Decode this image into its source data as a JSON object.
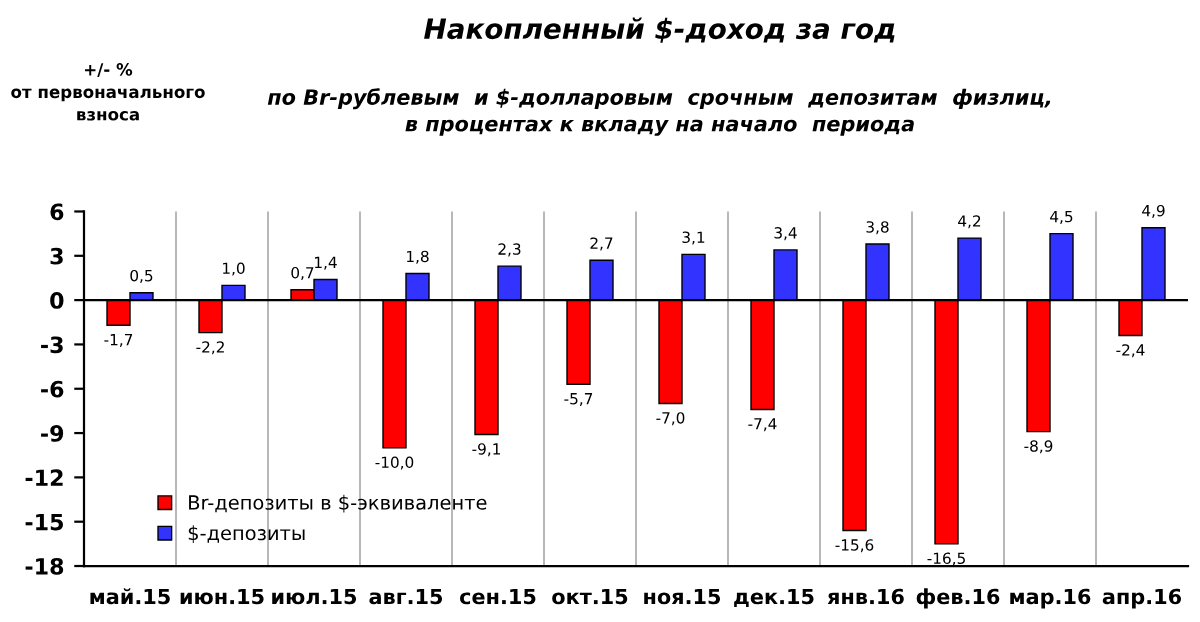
{
  "chart_data": {
    "type": "bar",
    "title": "Накопленный $-доход за год",
    "subtitle": "по Br-рублевым  и $-долларовым  срочным  депозитам  физлиц,\nв процентах к вкладу на начало  периода",
    "annotations": [
      "+/- %\nот первоначального\nвзноса"
    ],
    "categories": [
      "май.15",
      "июн.15",
      "июл.15",
      "авг.15",
      "сен.15",
      "окт.15",
      "ноя.15",
      "дек.15",
      "янв.16",
      "фев.16",
      "мар.16",
      "апр.16"
    ],
    "series": [
      {
        "name": "Br-депозиты в $-эквиваленте",
        "color": "#ff0000",
        "values": [
          -1.7,
          -2.2,
          0.7,
          -10.0,
          -9.1,
          -5.7,
          -7.0,
          -7.4,
          -15.6,
          -16.5,
          -8.9,
          -2.4
        ],
        "value_labels": [
          "-1,7",
          "-2,2",
          "0,7",
          "-10,0",
          "-9,1",
          "-5,7",
          "-7,0",
          "-7,4",
          "-15,6",
          "-16,5",
          "-8,9",
          "-2,4"
        ]
      },
      {
        "name": "$-депозиты",
        "color": "#3333ff",
        "values": [
          0.5,
          1.0,
          1.4,
          1.8,
          2.3,
          2.7,
          3.1,
          3.4,
          3.8,
          4.2,
          4.5,
          4.9
        ],
        "value_labels": [
          "0,5",
          "1,0",
          "1,4",
          "1,8",
          "2,3",
          "2,7",
          "3,1",
          "3,4",
          "3,8",
          "4,2",
          "4,5",
          "4,9"
        ]
      }
    ],
    "ylim": [
      -18,
      6
    ],
    "yticks": [
      -18,
      -15,
      -12,
      -9,
      -6,
      -3,
      0,
      3,
      6
    ],
    "grid": "x",
    "legend": "bottom left"
  }
}
